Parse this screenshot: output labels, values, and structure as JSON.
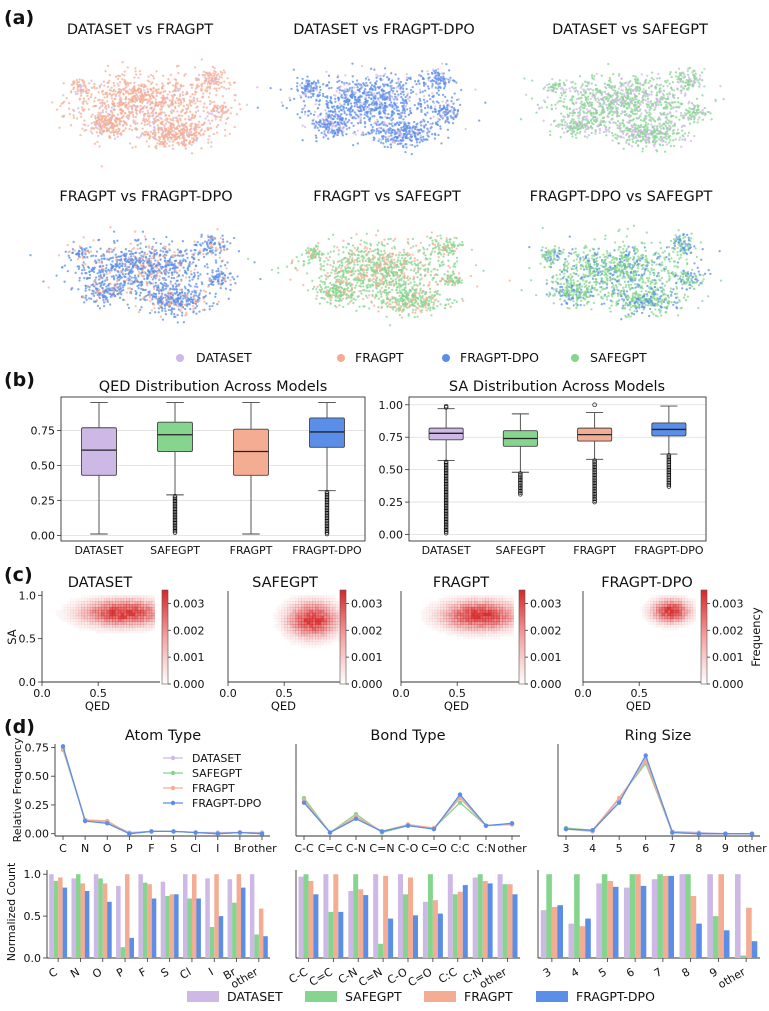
{
  "panels": {
    "a": {
      "label": "(a)",
      "titles": [
        "DATASET vs FRAGPT",
        "DATASET vs FRAGPT-DPO",
        "DATASET vs SAFEGPT",
        "FRAGPT vs FRAGPT-DPO",
        "FRAGPT vs SAFEGPT",
        "FRAGPT-DPO vs SAFEGPT"
      ],
      "legend": [
        "DATASET",
        "FRAGPT",
        "FRAGPT-DPO",
        "SAFEGPT"
      ]
    },
    "b": {
      "label": "(b)"
    },
    "c": {
      "label": "(c)"
    },
    "d": {
      "label": "(d)"
    }
  },
  "colors": {
    "DATASET": "#cdb8e6",
    "FRAGPT": "#f4ad93",
    "FRAGPT-DPO": "#5b8ee8",
    "SAFEGPT": "#86d58f",
    "heat": "#d62728"
  },
  "chart_data": [
    {
      "id": "qed-box",
      "type": "box",
      "title": "QED Distribution Across Models",
      "categories": [
        "DATASET",
        "SAFEGPT",
        "FRAGPT",
        "FRAGPT-DPO"
      ],
      "boxes": [
        {
          "min": 0.01,
          "q1": 0.43,
          "median": 0.61,
          "q3": 0.77,
          "max": 0.95,
          "outliers": []
        },
        {
          "min": 0.29,
          "q1": 0.6,
          "median": 0.72,
          "q3": 0.81,
          "max": 0.95,
          "outliers": [
            0.02,
            0.28
          ]
        },
        {
          "min": 0.01,
          "q1": 0.43,
          "median": 0.6,
          "q3": 0.76,
          "max": 0.95,
          "outliers": []
        },
        {
          "min": 0.32,
          "q1": 0.63,
          "median": 0.74,
          "q3": 0.84,
          "max": 0.95,
          "outliers": [
            0.01,
            0.31
          ]
        }
      ],
      "yticks": [
        "0.00",
        "0.25",
        "0.50",
        "0.75"
      ],
      "ylim": [
        -0.04,
        0.99
      ]
    },
    {
      "id": "sa-box",
      "type": "box",
      "title": "SA Distribution Across Models",
      "categories": [
        "DATASET",
        "SAFEGPT",
        "FRAGPT",
        "FRAGPT-DPO"
      ],
      "boxes": [
        {
          "min": 0.57,
          "q1": 0.73,
          "median": 0.78,
          "q3": 0.82,
          "max": 0.97,
          "outliers": [
            0.01,
            0.56,
            0.98,
            0.99
          ]
        },
        {
          "min": 0.48,
          "q1": 0.68,
          "median": 0.74,
          "q3": 0.8,
          "max": 0.93,
          "outliers": [
            0.31,
            0.47
          ]
        },
        {
          "min": 0.58,
          "q1": 0.72,
          "median": 0.77,
          "q3": 0.82,
          "max": 0.94,
          "outliers": [
            0.25,
            0.57,
            1.0
          ]
        },
        {
          "min": 0.62,
          "q1": 0.76,
          "median": 0.81,
          "q3": 0.86,
          "max": 0.99,
          "outliers": [
            0.37,
            0.61
          ]
        }
      ],
      "yticks": [
        "0.00",
        "0.25",
        "0.50",
        "0.75",
        "1.00"
      ],
      "ylim": [
        -0.05,
        1.06
      ]
    },
    {
      "id": "qed-sa-heatmaps",
      "type": "heatmap",
      "titles": [
        "DATASET",
        "SAFEGPT",
        "FRAGPT",
        "FRAGPT-DPO"
      ],
      "xlabel": "QED",
      "ylabel": "SA",
      "xticks": [
        "0.0",
        "0.5",
        "1.0"
      ],
      "yticks": [
        "0.0",
        "0.5",
        "1.0"
      ],
      "colorbar_ticks": [
        "0.003",
        "0.002",
        "0.001",
        "0.000"
      ],
      "colorbar_label": "Frequency",
      "vmax": 0.0035,
      "peaks": [
        {
          "qed": 0.72,
          "sa": 0.8,
          "spread_qed": 0.22,
          "spread_sa": 0.09,
          "qmin": 0.0
        },
        {
          "qed": 0.75,
          "sa": 0.72,
          "spread_qed": 0.13,
          "spread_sa": 0.12,
          "qmin": 0.1
        },
        {
          "qed": 0.7,
          "sa": 0.77,
          "spread_qed": 0.2,
          "spread_sa": 0.1,
          "qmin": 0.05
        },
        {
          "qed": 0.78,
          "sa": 0.82,
          "spread_qed": 0.1,
          "spread_sa": 0.08,
          "qmin": 0.3
        }
      ]
    },
    {
      "id": "relative-frequency",
      "type": "line",
      "ylabel": "Relative Frequency",
      "yticks": [
        "0.00",
        "0.25",
        "0.50",
        "0.75"
      ],
      "ylim": [
        -0.02,
        0.78
      ],
      "legend": [
        "DATASET",
        "SAFEGPT",
        "FRAGPT",
        "FRAGPT-DPO"
      ],
      "groups": [
        {
          "title": "Atom Type",
          "categories": [
            "C",
            "N",
            "O",
            "P",
            "F",
            "S",
            "Cl",
            "I",
            "Br",
            "other"
          ],
          "series": [
            {
              "name": "DATASET",
              "values": [
                0.75,
                0.12,
                0.1,
                0.01,
                0.02,
                0.02,
                0.01,
                0.01,
                0.01,
                0.01
              ]
            },
            {
              "name": "SAFEGPT",
              "values": [
                0.73,
                0.12,
                0.11,
                0.0,
                0.02,
                0.02,
                0.01,
                0.0,
                0.01,
                0.0
              ]
            },
            {
              "name": "FRAGPT",
              "values": [
                0.74,
                0.12,
                0.11,
                0.0,
                0.02,
                0.02,
                0.01,
                0.0,
                0.01,
                0.0
              ]
            },
            {
              "name": "FRAGPT-DPO",
              "values": [
                0.76,
                0.11,
                0.09,
                0.0,
                0.02,
                0.02,
                0.01,
                0.0,
                0.01,
                0.0
              ]
            }
          ]
        },
        {
          "title": "Bond Type",
          "categories": [
            "C-C",
            "C=C",
            "C-N",
            "C=N",
            "C-O",
            "C=O",
            "C:C",
            "C:N",
            "other"
          ],
          "series": [
            {
              "name": "DATASET",
              "values": [
                0.3,
                0.01,
                0.14,
                0.02,
                0.07,
                0.04,
                0.32,
                0.07,
                0.09
              ]
            },
            {
              "name": "SAFEGPT",
              "values": [
                0.31,
                0.01,
                0.17,
                0.01,
                0.07,
                0.05,
                0.27,
                0.07,
                0.08
              ]
            },
            {
              "name": "FRAGPT",
              "values": [
                0.29,
                0.01,
                0.15,
                0.02,
                0.08,
                0.05,
                0.31,
                0.07,
                0.08
              ]
            },
            {
              "name": "FRAGPT-DPO",
              "values": [
                0.27,
                0.01,
                0.13,
                0.02,
                0.07,
                0.04,
                0.34,
                0.07,
                0.09
              ]
            }
          ]
        },
        {
          "title": "Ring Size",
          "categories": [
            "3",
            "4",
            "5",
            "6",
            "7",
            "8",
            "9",
            "other"
          ],
          "series": [
            {
              "name": "DATASET",
              "values": [
                0.04,
                0.02,
                0.3,
                0.65,
                0.02,
                0.01,
                0.0,
                0.0
              ]
            },
            {
              "name": "SAFEGPT",
              "values": [
                0.05,
                0.03,
                0.31,
                0.61,
                0.01,
                0.0,
                0.0,
                0.0
              ]
            },
            {
              "name": "FRAGPT",
              "values": [
                0.04,
                0.03,
                0.31,
                0.63,
                0.01,
                0.0,
                0.0,
                0.0
              ]
            },
            {
              "name": "FRAGPT-DPO",
              "values": [
                0.04,
                0.03,
                0.27,
                0.68,
                0.01,
                0.0,
                0.0,
                0.0
              ]
            }
          ]
        }
      ]
    },
    {
      "id": "normalized-count",
      "type": "bar",
      "ylabel": "Normalized Count",
      "yticks": [
        "0.0",
        "0.5",
        "1.0"
      ],
      "ylim": [
        0,
        1.05
      ],
      "legend": [
        "DATASET",
        "SAFEGPT",
        "FRAGPT",
        "FRAGPT-DPO"
      ],
      "groups": [
        {
          "categories": [
            "C",
            "N",
            "O",
            "P",
            "F",
            "S",
            "Cl",
            "I",
            "Br",
            "other"
          ],
          "series": [
            {
              "name": "DATASET",
              "values": [
                1.0,
                0.95,
                1.0,
                0.86,
                1.0,
                0.91,
                1.0,
                0.95,
                0.94,
                1.0
              ]
            },
            {
              "name": "SAFEGPT",
              "values": [
                0.92,
                1.0,
                0.95,
                0.13,
                0.9,
                0.74,
                0.71,
                0.37,
                0.66,
                0.28
              ]
            },
            {
              "name": "FRAGPT",
              "values": [
                0.96,
                0.89,
                0.89,
                1.0,
                0.88,
                0.76,
                1.0,
                1.0,
                1.0,
                0.59
              ]
            },
            {
              "name": "FRAGPT-DPO",
              "values": [
                0.84,
                0.8,
                0.67,
                0.24,
                0.71,
                0.76,
                0.71,
                0.5,
                0.84,
                0.26
              ]
            }
          ]
        },
        {
          "categories": [
            "C-C",
            "C=C",
            "C-N",
            "C=N",
            "C-O",
            "C=O",
            "C:C",
            "C:N",
            "other"
          ],
          "series": [
            {
              "name": "DATASET",
              "values": [
                0.97,
                1.0,
                0.8,
                1.0,
                1.0,
                0.67,
                1.0,
                0.96,
                1.0
              ]
            },
            {
              "name": "SAFEGPT",
              "values": [
                1.0,
                0.55,
                1.0,
                0.17,
                0.76,
                1.0,
                0.76,
                1.0,
                0.88
              ]
            },
            {
              "name": "FRAGPT",
              "values": [
                0.92,
                1.0,
                0.82,
                0.98,
                0.96,
                0.69,
                0.79,
                0.92,
                0.88
              ]
            },
            {
              "name": "FRAGPT-DPO",
              "values": [
                0.76,
                0.55,
                0.75,
                0.47,
                0.51,
                0.53,
                0.87,
                0.89,
                0.76
              ]
            }
          ]
        },
        {
          "categories": [
            "3",
            "4",
            "5",
            "6",
            "7",
            "8",
            "9",
            "other"
          ],
          "series": [
            {
              "name": "DATASET",
              "values": [
                0.57,
                0.41,
                0.89,
                0.84,
                0.94,
                1.0,
                1.0,
                1.0
              ]
            },
            {
              "name": "SAFEGPT",
              "values": [
                1.0,
                1.0,
                1.0,
                1.0,
                1.0,
                1.0,
                0.5,
                0.03
              ]
            },
            {
              "name": "FRAGPT",
              "values": [
                0.61,
                0.38,
                0.92,
                1.0,
                0.98,
                0.74,
                1.0,
                0.6
              ]
            },
            {
              "name": "FRAGPT-DPO",
              "values": [
                0.63,
                0.47,
                0.85,
                0.86,
                0.98,
                0.41,
                0.33,
                0.2
              ]
            }
          ]
        }
      ]
    }
  ]
}
